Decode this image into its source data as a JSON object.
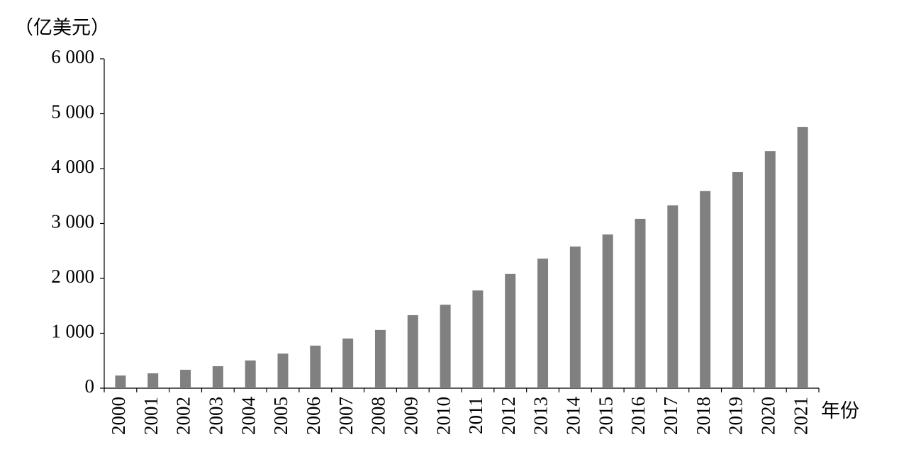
{
  "chart_data": {
    "type": "bar",
    "unit_label": "（亿美元）",
    "x_label": "年份",
    "categories": [
      "2000",
      "2001",
      "2002",
      "2003",
      "2004",
      "2005",
      "2006",
      "2007",
      "2008",
      "2009",
      "2010",
      "2011",
      "2012",
      "2013",
      "2014",
      "2015",
      "2016",
      "2017",
      "2018",
      "2019",
      "2020",
      "2021"
    ],
    "values": [
      230,
      270,
      335,
      400,
      505,
      630,
      775,
      905,
      1060,
      1330,
      1520,
      1780,
      2080,
      2360,
      2580,
      2800,
      3085,
      3330,
      3590,
      3935,
      4320,
      4760
    ],
    "color": "#808080",
    "ylim": [
      0,
      6000
    ],
    "yticks": [
      0,
      {
        "value": 1000,
        "label": "1 000"
      },
      {
        "value": 2000,
        "label": "2 000"
      },
      {
        "value": 3000,
        "label": "3 000"
      },
      {
        "value": 4000,
        "label": "4 000"
      },
      {
        "value": 5000,
        "label": "5 000"
      },
      {
        "value": 6000,
        "label": "6 000"
      }
    ],
    "grid": false
  }
}
